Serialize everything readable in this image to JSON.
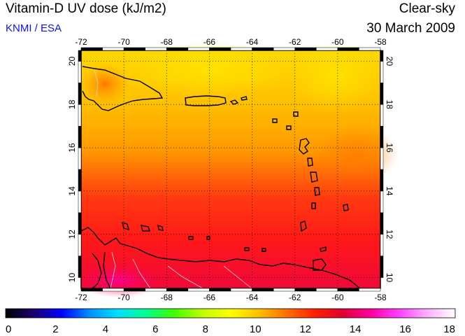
{
  "header": {
    "title": "Vitamin-D UV dose (kJ/m2)",
    "credit": "KNMI / ESA",
    "condition": "Clear-sky",
    "date": "30 March 2009"
  },
  "map": {
    "lon_range": [
      -72,
      -58
    ],
    "lat_range": [
      9.5,
      20.5
    ],
    "lon_ticks": [
      "-72",
      "-70",
      "-68",
      "-66",
      "-64",
      "-62",
      "-60",
      "-58"
    ],
    "lat_ticks": [
      "10",
      "12",
      "14",
      "16",
      "18",
      "20"
    ],
    "grid": "dotted",
    "field": "Vitamin-D UV dose (clear-sky)"
  },
  "colorbar": {
    "range": [
      0,
      18
    ],
    "tick_labels": [
      "0",
      "2",
      "4",
      "6",
      "8",
      "10",
      "12",
      "14",
      "16",
      "18"
    ],
    "colors": [
      "#000000",
      "#1a0070",
      "#0000ff",
      "#0090ff",
      "#00e0ff",
      "#00ff90",
      "#40ff00",
      "#c0ff00",
      "#ffff00",
      "#ffc000",
      "#ff7000",
      "#ff2000",
      "#e00030",
      "#ff00a0",
      "#ff40ff",
      "#ffb0ff",
      "#ffffff"
    ]
  }
}
